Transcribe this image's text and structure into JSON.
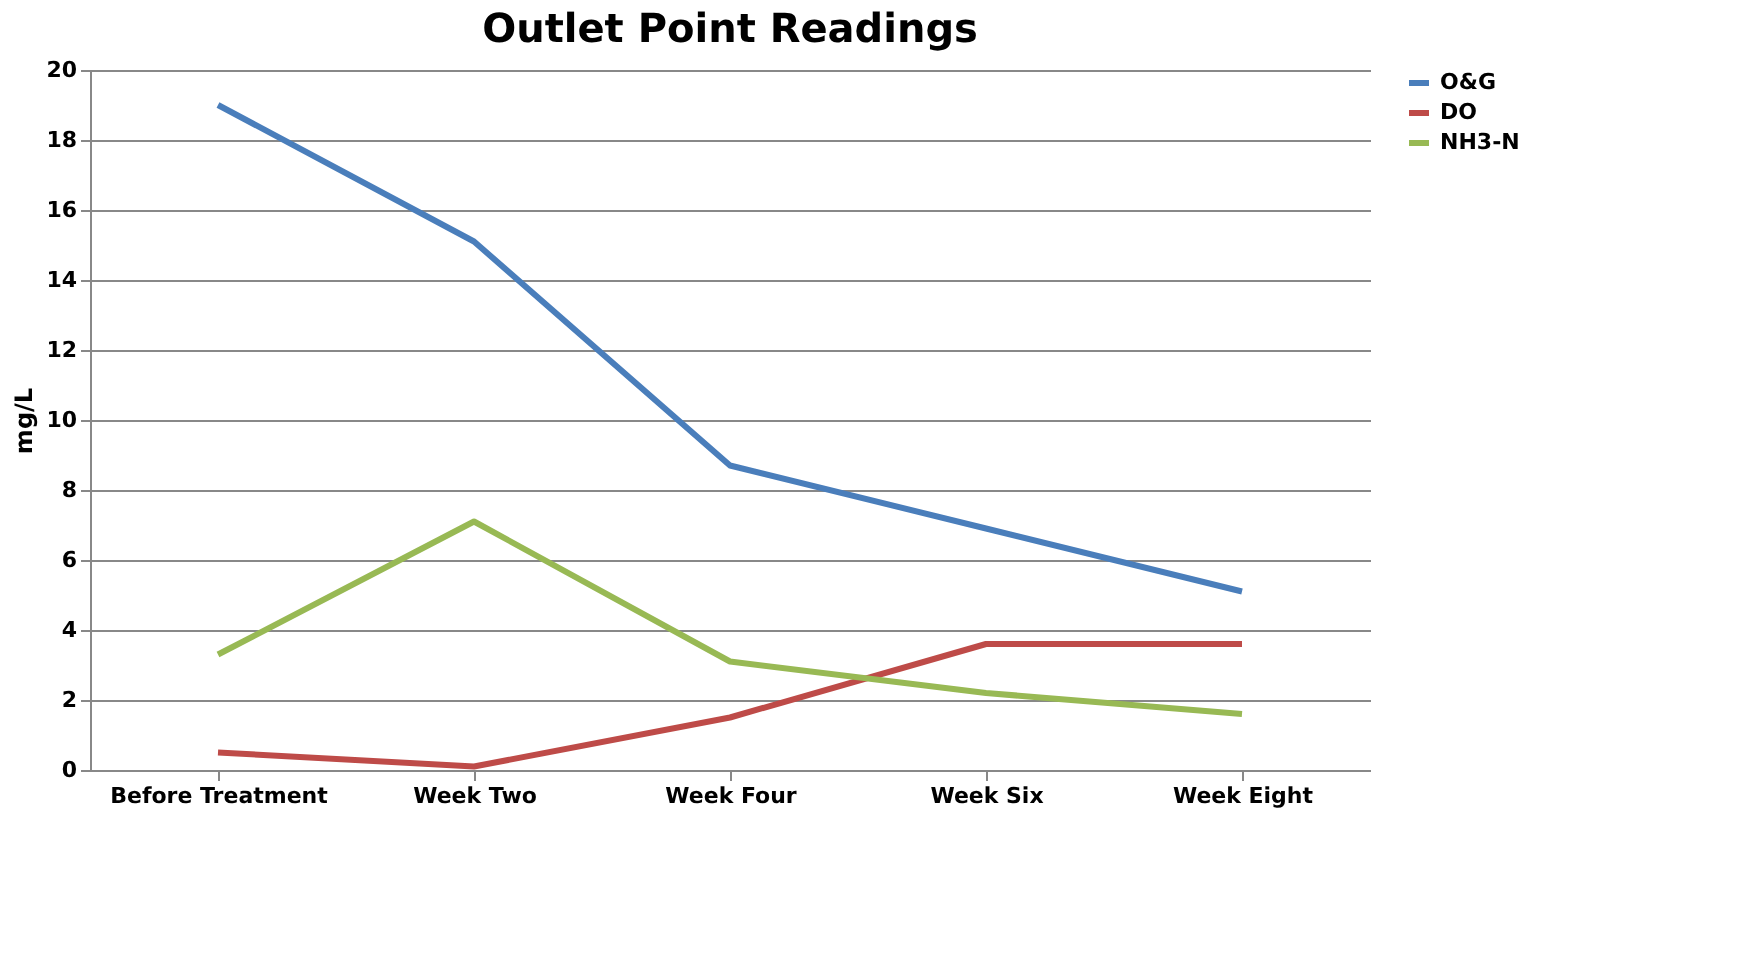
{
  "chart_data": {
    "type": "line",
    "title": "Outlet Point Readings",
    "ylabel": "mg/L",
    "categories": [
      "Before Treatment",
      "Week Two",
      "Week Four",
      "Week Six",
      "Week Eight"
    ],
    "series": [
      {
        "name": "O&G",
        "color": "#4a7ebb",
        "values": [
          19.0,
          15.1,
          8.7,
          6.9,
          5.1
        ]
      },
      {
        "name": "DO",
        "color": "#be4b48",
        "values": [
          0.5,
          0.1,
          1.5,
          3.6,
          3.6
        ]
      },
      {
        "name": "NH3-N",
        "color": "#98b954",
        "values": [
          3.3,
          7.1,
          3.1,
          2.2,
          1.6
        ]
      }
    ],
    "ylim": [
      0,
      20
    ],
    "yticks": [
      0,
      2,
      4,
      6,
      8,
      10,
      12,
      14,
      16,
      18,
      20
    ],
    "grid": "y",
    "legend": "right",
    "marker": "none",
    "line_style": "solid"
  }
}
